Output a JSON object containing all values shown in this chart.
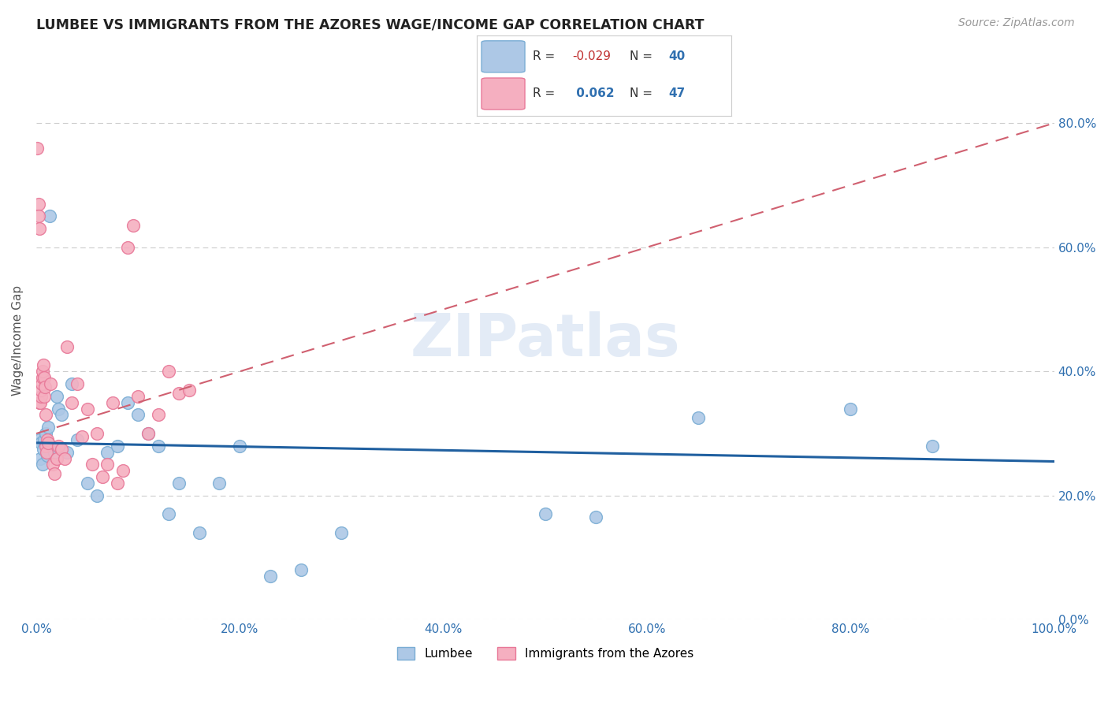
{
  "title": "LUMBEE VS IMMIGRANTS FROM THE AZORES WAGE/INCOME GAP CORRELATION CHART",
  "source": "Source: ZipAtlas.com",
  "ylabel": "Wage/Income Gap",
  "xlim": [
    0,
    100
  ],
  "ylim": [
    0,
    90
  ],
  "xticks": [
    0,
    20,
    40,
    60,
    80,
    100
  ],
  "xticklabels": [
    "0.0%",
    "20.0%",
    "40.0%",
    "60.0%",
    "80.0%",
    "100.0%"
  ],
  "yticks": [
    0,
    20,
    40,
    60,
    80
  ],
  "yticklabels": [
    "0.0%",
    "20.0%",
    "40.0%",
    "60.0%",
    "80.0%"
  ],
  "watermark": "ZIPatlas",
  "lumbee_color": "#adc8e6",
  "azores_color": "#f5afc0",
  "lumbee_edge": "#7aadd4",
  "azores_edge": "#e87898",
  "trend_lumbee_color": "#2060a0",
  "trend_azores_color": "#d06070",
  "lumbee_x": [
    0.3,
    0.4,
    0.5,
    0.6,
    0.7,
    0.8,
    0.9,
    1.0,
    1.1,
    1.2,
    1.5,
    1.8,
    2.0,
    2.2,
    2.5,
    3.0,
    3.5,
    4.0,
    5.0,
    6.0,
    7.0,
    8.0,
    9.0,
    10.0,
    11.0,
    12.0,
    13.0,
    14.0,
    16.0,
    18.0,
    20.0,
    23.0,
    26.0,
    30.0,
    50.0,
    55.0,
    65.0,
    80.0,
    88.0,
    1.3
  ],
  "lumbee_y": [
    29.0,
    26.0,
    28.5,
    25.0,
    27.5,
    29.0,
    30.0,
    28.0,
    26.5,
    31.0,
    28.0,
    27.0,
    36.0,
    34.0,
    33.0,
    27.0,
    38.0,
    29.0,
    22.0,
    20.0,
    27.0,
    28.0,
    35.0,
    33.0,
    30.0,
    28.0,
    17.0,
    22.0,
    14.0,
    22.0,
    28.0,
    7.0,
    8.0,
    14.0,
    17.0,
    16.5,
    32.5,
    34.0,
    28.0,
    65.0
  ],
  "azores_x": [
    0.1,
    0.2,
    0.25,
    0.3,
    0.35,
    0.4,
    0.45,
    0.5,
    0.55,
    0.6,
    0.65,
    0.7,
    0.75,
    0.8,
    0.85,
    0.9,
    0.95,
    1.0,
    1.1,
    1.2,
    1.4,
    1.6,
    1.8,
    2.0,
    2.2,
    2.5,
    2.8,
    3.0,
    3.5,
    4.0,
    4.5,
    5.0,
    5.5,
    6.0,
    6.5,
    7.0,
    7.5,
    8.0,
    8.5,
    9.0,
    9.5,
    10.0,
    11.0,
    12.0,
    13.0,
    14.0,
    15.0
  ],
  "azores_y": [
    76.0,
    67.0,
    65.0,
    35.0,
    63.0,
    35.0,
    36.0,
    37.0,
    38.0,
    39.0,
    40.0,
    41.0,
    39.0,
    36.0,
    37.5,
    33.0,
    28.0,
    27.0,
    29.0,
    28.5,
    38.0,
    25.0,
    23.5,
    26.0,
    28.0,
    27.5,
    26.0,
    44.0,
    35.0,
    38.0,
    29.5,
    34.0,
    25.0,
    30.0,
    23.0,
    25.0,
    35.0,
    22.0,
    24.0,
    60.0,
    63.5,
    36.0,
    30.0,
    33.0,
    40.0,
    36.5,
    37.0
  ],
  "trend_lumbee_x0": 0,
  "trend_lumbee_y0": 28.5,
  "trend_lumbee_x1": 100,
  "trend_lumbee_y1": 25.5,
  "trend_azores_x0": 0,
  "trend_azores_y0": 30.0,
  "trend_azores_x1": 100,
  "trend_azores_y1": 80.0
}
